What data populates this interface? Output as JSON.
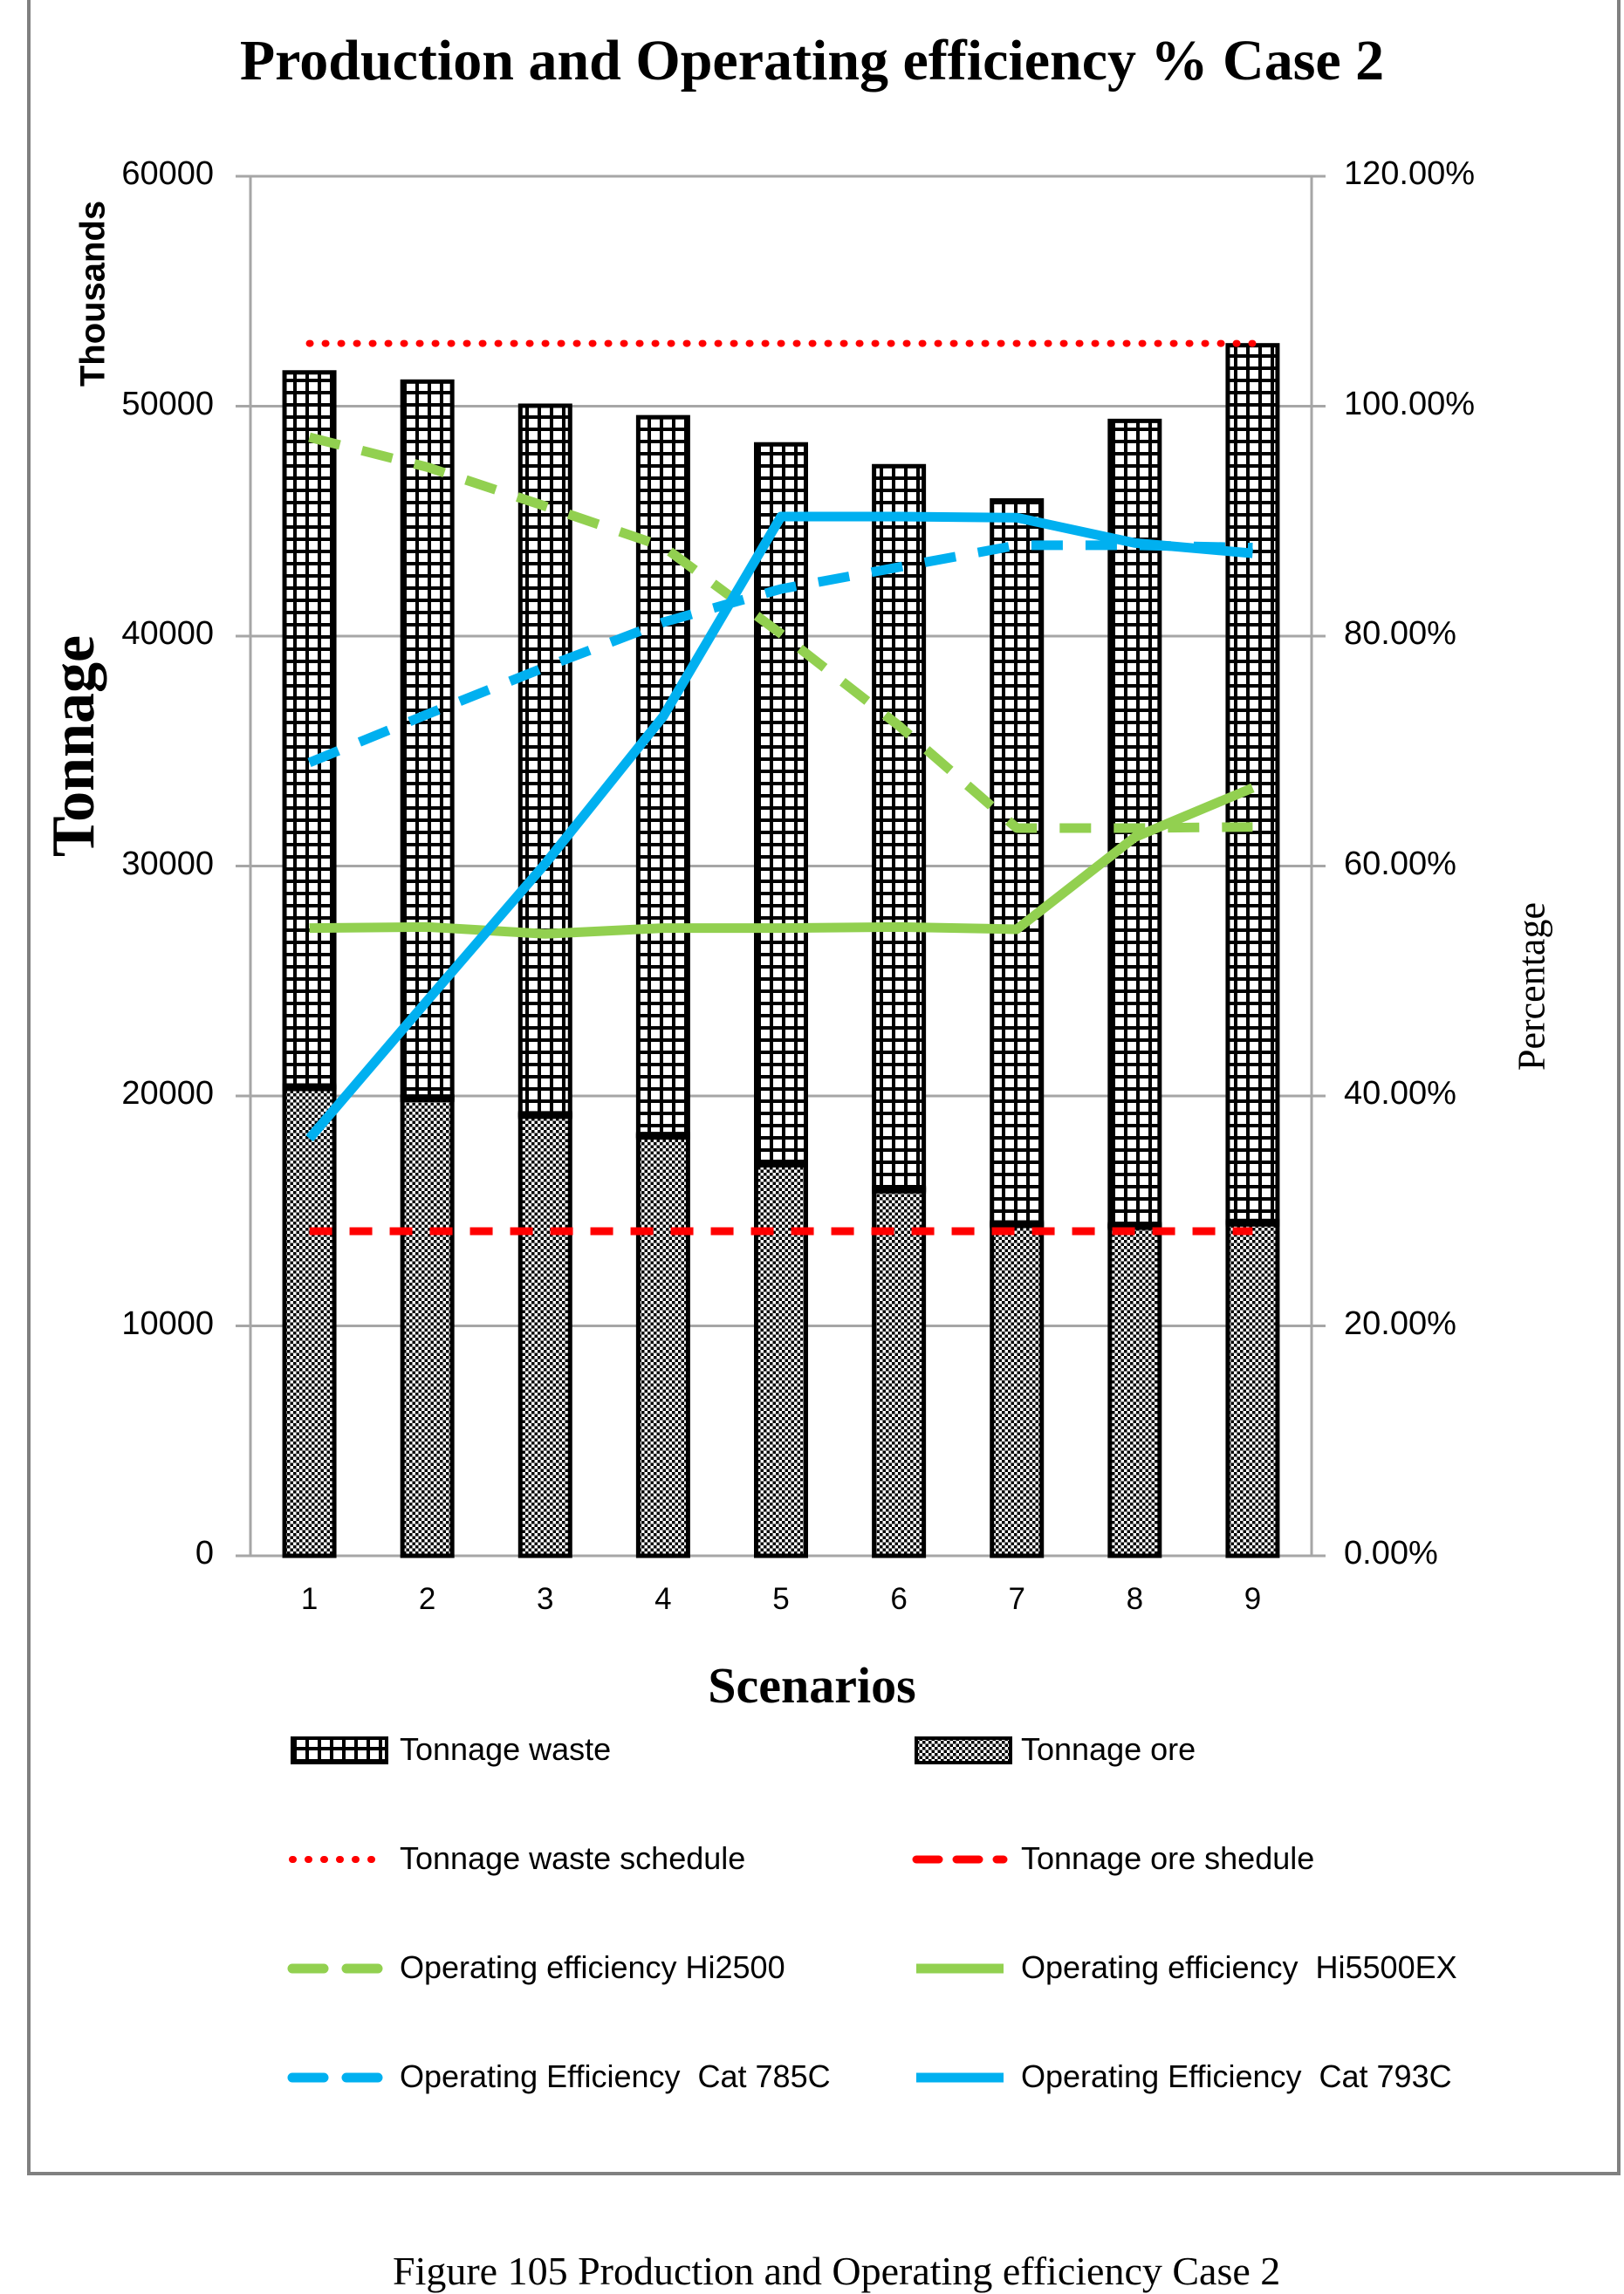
{
  "figure": {
    "title": "Production and Operating efficiency % Case 2",
    "caption": "Figure 105 Production and Operating efficiency Case 2"
  },
  "axes": {
    "left_title": "Tonnage",
    "left_subtitle": "Thousands",
    "right_title": "Percentage",
    "x_title": "Scenarios",
    "left_ticks": [
      "0",
      "10000",
      "20000",
      "30000",
      "40000",
      "50000",
      "60000"
    ],
    "right_ticks": [
      "0.00%",
      "20.00%",
      "40.00%",
      "60.00%",
      "80.00%",
      "100.00%",
      "120.00%"
    ],
    "x_ticks": [
      "1",
      "2",
      "3",
      "4",
      "5",
      "6",
      "7",
      "8",
      "9"
    ]
  },
  "chart_data": {
    "type": "combo-stacked-bar-line",
    "categories": [
      1,
      2,
      3,
      4,
      5,
      6,
      7,
      8,
      9
    ],
    "title": "Production and Operating efficiency % Case 2",
    "xlabel": "Scenarios",
    "ylabel_left": "Tonnage (Thousands)",
    "ylabel_right": "Percentage",
    "left_axis": {
      "min": 0,
      "max": 60000,
      "step": 10000
    },
    "right_axis": {
      "min": 0,
      "max": 120,
      "step": 20,
      "format": "percent"
    },
    "grid": true,
    "legend_position": "bottom",
    "bar_series": [
      {
        "name": "Tonnage ore",
        "stack": "total",
        "pattern": "dots",
        "values": [
          20380,
          19900,
          19170,
          18270,
          17060,
          15930,
          14420,
          14340,
          14490
        ]
      },
      {
        "name": "Tonnage waste",
        "stack": "total",
        "pattern": "grid",
        "values": [
          31090,
          31170,
          30850,
          31250,
          31280,
          31460,
          31480,
          35020,
          38160
        ]
      }
    ],
    "line_series": [
      {
        "name": "Tonnage waste schedule",
        "axis": "left",
        "style": "dotted",
        "color": "#FF0000",
        "values": [
          52730,
          52730,
          52730,
          52730,
          52730,
          52730,
          52730,
          52730,
          52730
        ]
      },
      {
        "name": "Tonnage ore shedule",
        "axis": "left",
        "style": "dashed",
        "color": "#FF0000",
        "values": [
          14120,
          14120,
          14120,
          14120,
          14120,
          14120,
          14120,
          14120,
          14120
        ]
      },
      {
        "name": "Operating efficiency Hi2500",
        "axis": "right",
        "style": "dashed",
        "color": "#92D050",
        "values": [
          97.3,
          94.7,
          91.3,
          87.8,
          80.2,
          72.2,
          63.3,
          63.3,
          63.4
        ]
      },
      {
        "name": "Operating efficiency  Hi5500EX",
        "axis": "right",
        "style": "solid",
        "color": "#92D050",
        "values": [
          54.6,
          54.7,
          54.1,
          54.6,
          54.6,
          54.7,
          54.5,
          62.5,
          66.8
        ]
      },
      {
        "name": "Operating Efficiency  Cat 785C",
        "axis": "right",
        "style": "dashed",
        "color": "#00B0F0",
        "values": [
          69.0,
          73.2,
          77.3,
          81.2,
          84.1,
          86.0,
          87.9,
          87.9,
          87.7
        ]
      },
      {
        "name": "Operating Efficiency  Cat 793C",
        "axis": "right",
        "style": "solid",
        "color": "#00B0F0",
        "values": [
          36.3,
          48.3,
          60.2,
          73.0,
          90.4,
          90.4,
          90.3,
          88.1,
          87.2
        ]
      }
    ]
  },
  "legend": {
    "items": [
      {
        "label": "Tonnage waste",
        "marker": "swatch-grid"
      },
      {
        "label": "Tonnage ore",
        "marker": "swatch-dots"
      },
      {
        "label": "Tonnage waste schedule",
        "marker": "line-dotted",
        "color": "#FF0000"
      },
      {
        "label": "Tonnage ore shedule",
        "marker": "line-dashed",
        "color": "#FF0000"
      },
      {
        "label": "Operating efficiency Hi2500",
        "marker": "line-dashed",
        "color": "#92D050"
      },
      {
        "label": "Operating efficiency  Hi5500EX",
        "marker": "line-solid",
        "color": "#92D050"
      },
      {
        "label": "Operating Efficiency  Cat 785C",
        "marker": "line-dashed",
        "color": "#00B0F0"
      },
      {
        "label": "Operating Efficiency  Cat 793C",
        "marker": "line-solid",
        "color": "#00B0F0"
      }
    ]
  },
  "colors": {
    "red": "#FF0000",
    "green": "#92D050",
    "blue": "#00B0F0",
    "gridline": "#A6A6A6",
    "border": "#808080",
    "bar_stroke": "#000000"
  }
}
